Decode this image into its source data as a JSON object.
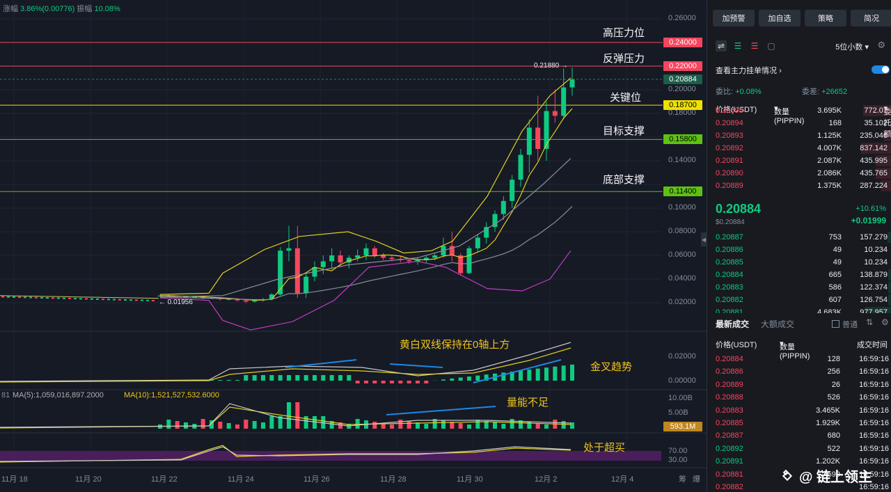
{
  "header": {
    "label1": "涨幅",
    "change": "3.86%(0.00776)",
    "label2": "振幅",
    "amplitude": "10.08%"
  },
  "sidebar": {
    "buttons": [
      "加预警",
      "加自选",
      "策略",
      "简况"
    ],
    "precision": "5位小数",
    "main_orders": "查看主力挂单情况",
    "ratio_label": "委比:",
    "ratio_value": "+0.08%",
    "diff_label": "委差:",
    "diff_value": "+26652",
    "ob_headers": [
      "价格(USDT)",
      "数量(PIPPIN)",
      "委托额"
    ],
    "asks": [
      {
        "p": "0.20895",
        "q": "3.695K",
        "t": "772.07"
      },
      {
        "p": "0.20894",
        "q": "168",
        "t": "35.102"
      },
      {
        "p": "0.20893",
        "q": "1.125K",
        "t": "235.046"
      },
      {
        "p": "0.20892",
        "q": "4.007K",
        "t": "837.142"
      },
      {
        "p": "0.20891",
        "q": "2.087K",
        "t": "435.995"
      },
      {
        "p": "0.20890",
        "q": "2.086K",
        "t": "435.765"
      },
      {
        "p": "0.20889",
        "q": "1.375K",
        "t": "287.224"
      }
    ],
    "last_price": "0.20884",
    "last_price_usd": "$0.20884",
    "last_pct": "+10.61%",
    "last_abs": "+0.01999",
    "bids": [
      {
        "p": "0.20887",
        "q": "753",
        "t": "157.279"
      },
      {
        "p": "0.20886",
        "q": "49",
        "t": "10.234"
      },
      {
        "p": "0.20885",
        "q": "49",
        "t": "10.234"
      },
      {
        "p": "0.20884",
        "q": "665",
        "t": "138.879"
      },
      {
        "p": "0.20883",
        "q": "586",
        "t": "122.374"
      },
      {
        "p": "0.20882",
        "q": "607",
        "t": "126.754"
      },
      {
        "p": "0.20881",
        "q": "4.683K",
        "t": "977.957"
      }
    ],
    "trades_tabs": [
      "最新成交",
      "大额成交"
    ],
    "trades_filter": "普通",
    "trades_headers": [
      "价格(USDT)",
      "数量(PIPPIN)",
      "成交时间"
    ],
    "trades": [
      {
        "p": "0.20884",
        "q": "128",
        "tm": "16:59:16",
        "c": "red"
      },
      {
        "p": "0.20886",
        "q": "256",
        "tm": "16:59:16",
        "c": "red"
      },
      {
        "p": "0.20889",
        "q": "26",
        "tm": "16:59:16",
        "c": "red"
      },
      {
        "p": "0.20888",
        "q": "526",
        "tm": "16:59:16",
        "c": "red"
      },
      {
        "p": "0.20883",
        "q": "3.465K",
        "tm": "16:59:16",
        "c": "red"
      },
      {
        "p": "0.20885",
        "q": "1.929K",
        "tm": "16:59:16",
        "c": "red"
      },
      {
        "p": "0.20887",
        "q": "680",
        "tm": "16:59:16",
        "c": "red"
      },
      {
        "p": "0.20892",
        "q": "522",
        "tm": "16:59:16",
        "c": "green"
      },
      {
        "p": "0.20891",
        "q": "1.202K",
        "tm": "16:59:16",
        "c": "green"
      },
      {
        "p": "0.20881",
        "q": "599",
        "tm": "16:59:16",
        "c": "red"
      },
      {
        "p": "0.20882",
        "q": "",
        "tm": "16:59:16",
        "c": "red"
      }
    ]
  },
  "chart": {
    "y_labels": [
      "0.26000",
      "0.20000",
      "0.18000",
      "0.14000",
      "0.10000",
      "0.08000",
      "0.06000",
      "0.04000",
      "0.02000"
    ],
    "tags": [
      {
        "v": "0.24000",
        "bg": "#f6465d",
        "fg": "#ffffff"
      },
      {
        "v": "0.22000",
        "bg": "#f6465d",
        "fg": "#ffffff"
      },
      {
        "v": "0.20884",
        "bg": "#1b5e4a",
        "fg": "#ffffff"
      },
      {
        "v": "0.18700",
        "bg": "#f0e000",
        "fg": "#000000"
      },
      {
        "v": "0.15800",
        "bg": "#5ec212",
        "fg": "#000000"
      },
      {
        "v": "0.11400",
        "bg": "#5ec212",
        "fg": "#000000"
      }
    ],
    "annotations": [
      "高压力位",
      "反弹压力",
      "关键位",
      "目标支撑",
      "底部支撑",
      "黄白双线保持在0轴上方",
      "金叉趋势",
      "量能不足",
      "处于超买"
    ],
    "high_marker": "0.21880 →",
    "low_marker": "← 0.01956",
    "macd_labels": [
      "0.02000",
      "0.00000"
    ],
    "vol_labels": [
      "10.00B",
      "5.00B"
    ],
    "vol_tag": "593.1M",
    "rsi_labels": [
      "70.00",
      "30.00"
    ],
    "ma5": "MA(5):1,059,016,897.2000",
    "ma10": "MA(10):1,521,527,532.6000",
    "ma_prefix": "81",
    "x_labels": [
      "11月 18",
      "11月 20",
      "11月 22",
      "11月 24",
      "11月 26",
      "11月 28",
      "11月 30",
      "12月 2",
      "12月 4"
    ],
    "x_extra": [
      "筹",
      "爆"
    ],
    "watermark": "@ 链上领主"
  },
  "chart_data": {
    "type": "candlestick",
    "candles": [
      [
        0.026,
        0.027,
        0.025,
        0.026
      ],
      [
        0.026,
        0.027,
        0.025,
        0.026
      ],
      [
        0.026,
        0.026,
        0.025,
        0.025
      ],
      [
        0.025,
        0.026,
        0.024,
        0.025
      ],
      [
        0.025,
        0.026,
        0.024,
        0.025
      ],
      [
        0.025,
        0.025,
        0.023,
        0.024
      ],
      [
        0.024,
        0.025,
        0.023,
        0.024
      ],
      [
        0.024,
        0.024,
        0.022,
        0.023
      ],
      [
        0.023,
        0.024,
        0.022,
        0.023
      ],
      [
        0.023,
        0.024,
        0.021,
        0.022
      ],
      [
        0.022,
        0.023,
        0.0196,
        0.021
      ],
      [
        0.021,
        0.023,
        0.02,
        0.022
      ],
      [
        0.022,
        0.024,
        0.021,
        0.023
      ],
      [
        0.023,
        0.028,
        0.022,
        0.027
      ],
      [
        0.027,
        0.067,
        0.026,
        0.064
      ],
      [
        0.064,
        0.085,
        0.055,
        0.066
      ],
      [
        0.066,
        0.085,
        0.024,
        0.028
      ],
      [
        0.028,
        0.045,
        0.024,
        0.042
      ],
      [
        0.042,
        0.055,
        0.038,
        0.05
      ],
      [
        0.05,
        0.06,
        0.044,
        0.055
      ],
      [
        0.055,
        0.066,
        0.048,
        0.06
      ],
      [
        0.06,
        0.064,
        0.05,
        0.054
      ],
      [
        0.054,
        0.06,
        0.049,
        0.058
      ],
      [
        0.058,
        0.065,
        0.055,
        0.06
      ],
      [
        0.06,
        0.07,
        0.056,
        0.066
      ],
      [
        0.066,
        0.068,
        0.058,
        0.06
      ],
      [
        0.06,
        0.062,
        0.056,
        0.058
      ],
      [
        0.058,
        0.06,
        0.055,
        0.057
      ],
      [
        0.057,
        0.059,
        0.054,
        0.056
      ],
      [
        0.056,
        0.058,
        0.053,
        0.055
      ],
      [
        0.055,
        0.058,
        0.052,
        0.056
      ],
      [
        0.056,
        0.06,
        0.054,
        0.058
      ],
      [
        0.058,
        0.062,
        0.056,
        0.06
      ],
      [
        0.06,
        0.075,
        0.058,
        0.068
      ],
      [
        0.068,
        0.08,
        0.055,
        0.06
      ],
      [
        0.06,
        0.062,
        0.043,
        0.045
      ],
      [
        0.045,
        0.068,
        0.044,
        0.066
      ],
      [
        0.066,
        0.078,
        0.063,
        0.075
      ],
      [
        0.075,
        0.088,
        0.07,
        0.084
      ],
      [
        0.084,
        0.098,
        0.08,
        0.095
      ],
      [
        0.095,
        0.11,
        0.09,
        0.106
      ],
      [
        0.106,
        0.128,
        0.1,
        0.124
      ],
      [
        0.124,
        0.15,
        0.118,
        0.145
      ],
      [
        0.145,
        0.175,
        0.13,
        0.168
      ],
      [
        0.168,
        0.195,
        0.14,
        0.15
      ],
      [
        0.15,
        0.19,
        0.14,
        0.182
      ],
      [
        0.182,
        0.2,
        0.172,
        0.178
      ],
      [
        0.178,
        0.218,
        0.175,
        0.202
      ],
      [
        0.202,
        0.2188,
        0.195,
        0.2088
      ]
    ]
  }
}
